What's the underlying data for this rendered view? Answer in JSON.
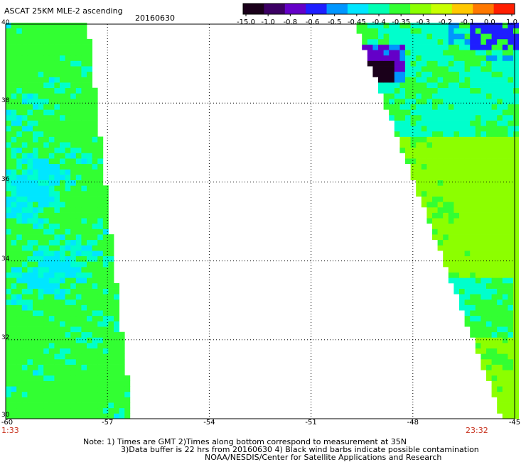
{
  "header": {
    "title": "ASCAT 25KM MLE-2 ascending",
    "date": "20160630"
  },
  "colorbar": {
    "labels": [
      "-15.0",
      "-1.0",
      "-0.8",
      "-0.6",
      "-0.5",
      "-0.45",
      "-0.4",
      "-0.35",
      "-0.3",
      "-0.2",
      "-0.1",
      "0.0",
      "1.0"
    ],
    "colors": [
      "#1a001a",
      "#3c0064",
      "#6400c8",
      "#1e1eff",
      "#0096ff",
      "#00e6ff",
      "#00ffb4",
      "#32ff32",
      "#8cff00",
      "#c8ff00",
      "#ffc800",
      "#ff7800",
      "#ff1e00"
    ]
  },
  "axes": {
    "x_ticks": [
      "-60",
      "-57",
      "-54",
      "-51",
      "-48",
      "-45"
    ],
    "y_ticks": [
      "40",
      "38",
      "36",
      "34",
      "32",
      "30"
    ],
    "x_range": [
      -60,
      -45
    ],
    "y_range": [
      30,
      40
    ]
  },
  "times": {
    "start": "1:33",
    "end": "23:32"
  },
  "notes": {
    "line1": "Note: 1) Times are GMT 2)Times along bottom correspond to measurement at 35N",
    "line2": "3)Data buffer is 22 hrs from 20160630 4) Black wind barbs indicate possible contamination",
    "line3": "NOAA/NESDIS/Center for Satellite Applications and Research"
  },
  "swaths": {
    "west": {
      "lon_west": -60,
      "lon_east_top": -57.6,
      "lon_east_bottom": -56.3
    },
    "east": {
      "lon_west_top": -49.7,
      "lon_west_bottom": -45.4,
      "lon_east": -45
    },
    "colors": {
      "green": "#32ff32",
      "yellowgreen": "#8cff00",
      "cyan": "#00ffcc",
      "lightblue": "#00e6ff",
      "blue": "#0096ff",
      "darkblue": "#1e1eff",
      "violet": "#6400c8",
      "black": "#1a001a"
    }
  }
}
